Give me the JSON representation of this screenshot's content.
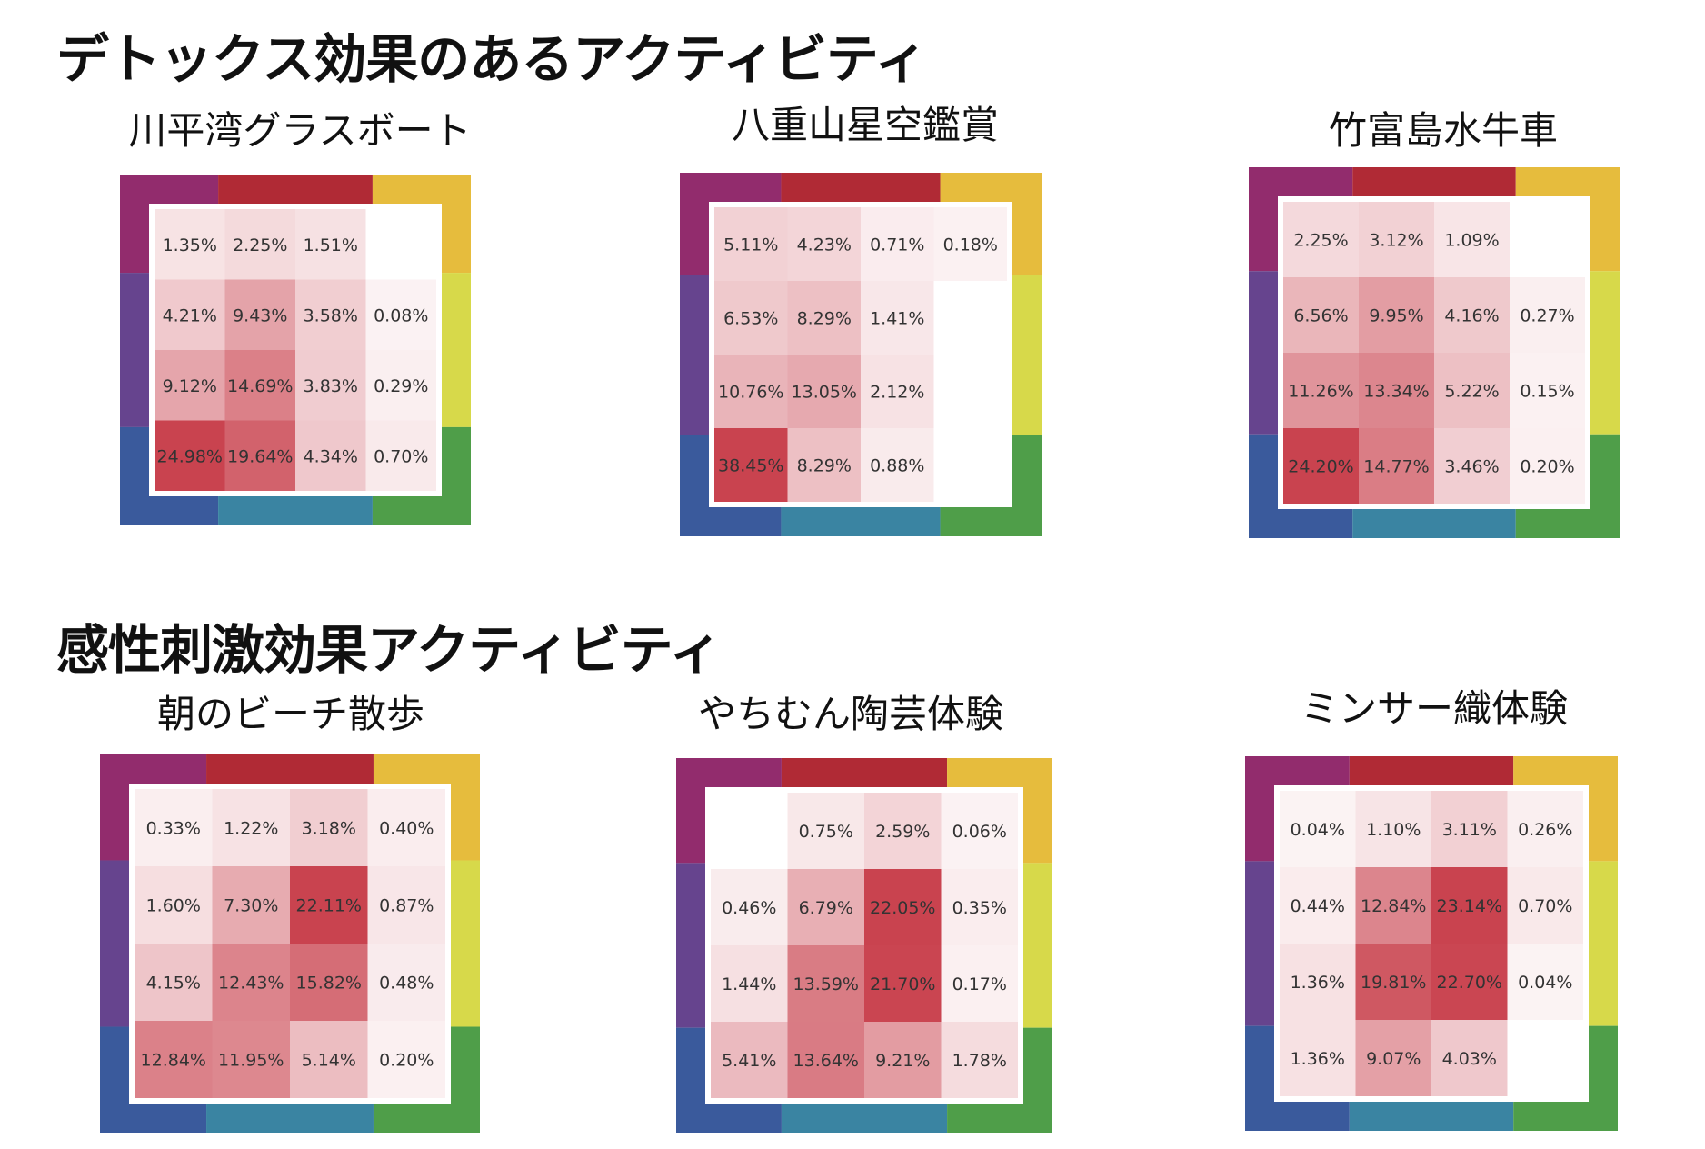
{
  "sections": [
    {
      "title": "デトックス効果のあるアクティビティ"
    },
    {
      "title": "感性刺激効果アクティビティ"
    }
  ],
  "colors": {
    "frame": {
      "top": [
        "#922c6d",
        "#b02a35",
        "#e6bc3d"
      ],
      "right": [
        "#e6bc3d",
        "#d7d94a",
        "#4f9e49"
      ],
      "bottom": [
        "#3a5a9c",
        "#3a84a2",
        "#4f9e49"
      ],
      "left": [
        "#922c6d",
        "#66448e",
        "#3a5a9c"
      ]
    },
    "heat_low": "#ffffff",
    "heat_high": "#c9434f"
  },
  "chart_data": [
    {
      "type": "heatmap",
      "title": "川平湾グラスボート",
      "value_format": "percent",
      "rows": [
        [
          "1.35%",
          "2.25%",
          "1.51%",
          ""
        ],
        [
          "4.21%",
          "9.43%",
          "3.58%",
          "0.08%"
        ],
        [
          "9.12%",
          "14.69%",
          "3.83%",
          "0.29%"
        ],
        [
          "24.98%",
          "19.64%",
          "4.34%",
          "0.70%"
        ]
      ]
    },
    {
      "type": "heatmap",
      "title": "八重山星空鑑賞",
      "value_format": "percent",
      "rows": [
        [
          "5.11%",
          "4.23%",
          "0.71%",
          "0.18%"
        ],
        [
          "6.53%",
          "8.29%",
          "1.41%",
          ""
        ],
        [
          "10.76%",
          "13.05%",
          "2.12%",
          ""
        ],
        [
          "38.45%",
          "8.29%",
          "0.88%",
          ""
        ]
      ]
    },
    {
      "type": "heatmap",
      "title": "竹富島水牛車",
      "value_format": "percent",
      "rows": [
        [
          "2.25%",
          "3.12%",
          "1.09%",
          ""
        ],
        [
          "6.56%",
          "9.95%",
          "4.16%",
          "0.27%"
        ],
        [
          "11.26%",
          "13.34%",
          "5.22%",
          "0.15%"
        ],
        [
          "24.20%",
          "14.77%",
          "3.46%",
          "0.20%"
        ]
      ]
    },
    {
      "type": "heatmap",
      "title": "朝のビーチ散歩",
      "value_format": "percent",
      "rows": [
        [
          "0.33%",
          "1.22%",
          "3.18%",
          "0.40%"
        ],
        [
          "1.60%",
          "7.30%",
          "22.11%",
          "0.87%"
        ],
        [
          "4.15%",
          "12.43%",
          "15.82%",
          "0.48%"
        ],
        [
          "12.84%",
          "11.95%",
          "5.14%",
          "0.20%"
        ]
      ]
    },
    {
      "type": "heatmap",
      "title": "やちむん陶芸体験",
      "value_format": "percent",
      "rows": [
        [
          "",
          "0.75%",
          "2.59%",
          "0.06%"
        ],
        [
          "0.46%",
          "6.79%",
          "22.05%",
          "0.35%"
        ],
        [
          "1.44%",
          "13.59%",
          "21.70%",
          "0.17%"
        ],
        [
          "5.41%",
          "13.64%",
          "9.21%",
          "1.78%"
        ]
      ]
    },
    {
      "type": "heatmap",
      "title": "ミンサー織体験",
      "value_format": "percent",
      "rows": [
        [
          "0.04%",
          "1.10%",
          "3.11%",
          "0.26%"
        ],
        [
          "0.44%",
          "12.84%",
          "23.14%",
          "0.70%"
        ],
        [
          "1.36%",
          "19.81%",
          "22.70%",
          "0.04%"
        ],
        [
          "1.36%",
          "9.07%",
          "4.03%",
          ""
        ]
      ]
    }
  ]
}
